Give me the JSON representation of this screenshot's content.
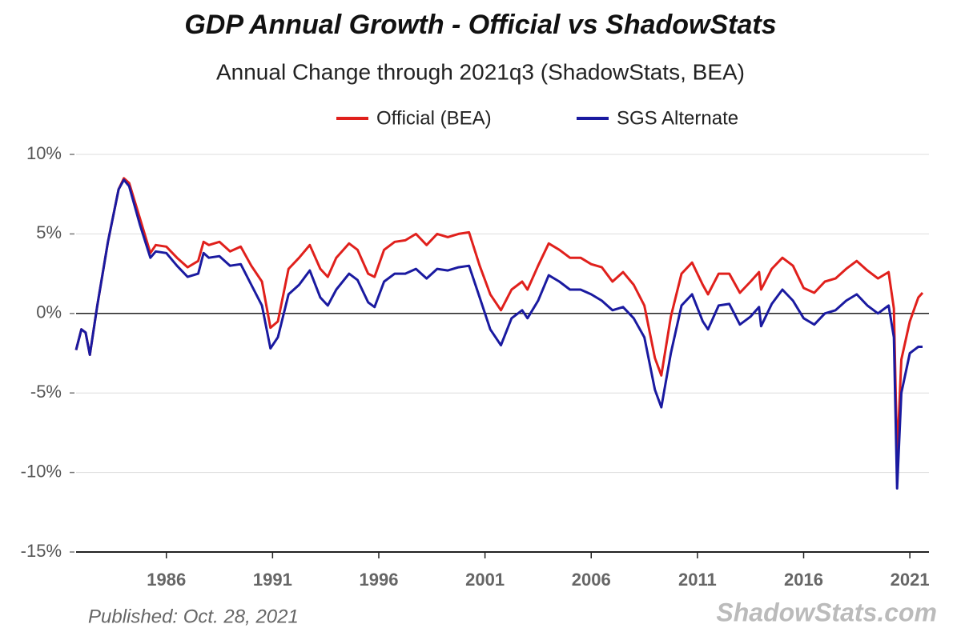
{
  "chart_data": {
    "type": "line",
    "title": "GDP Annual Growth - Official vs ShadowStats",
    "subtitle": "Annual Change through 2021q3  (ShadowStats, BEA)",
    "published": "Published: Oct. 28, 2021",
    "watermark": "ShadowStats.com",
    "x": [
      1981.75,
      1982.0,
      1982.2,
      1982.4,
      1982.75,
      1983.25,
      1983.75,
      1984.0,
      1984.25,
      1984.75,
      1985.25,
      1985.5,
      1986.0,
      1986.5,
      1987.0,
      1987.5,
      1987.75,
      1988.0,
      1988.5,
      1989.0,
      1989.5,
      1990.0,
      1990.5,
      1990.9,
      1991.25,
      1991.75,
      1992.25,
      1992.75,
      1993.25,
      1993.6,
      1994.0,
      1994.6,
      1995.0,
      1995.5,
      1995.8,
      1996.25,
      1996.75,
      1997.25,
      1997.75,
      1998.25,
      1998.75,
      1999.25,
      1999.75,
      2000.25,
      2000.75,
      2001.25,
      2001.75,
      2002.25,
      2002.75,
      2003.0,
      2003.5,
      2004.0,
      2004.5,
      2005.0,
      2005.5,
      2006.0,
      2006.5,
      2007.0,
      2007.5,
      2008.0,
      2008.5,
      2009.0,
      2009.3,
      2009.75,
      2010.25,
      2010.75,
      2011.25,
      2011.5,
      2012.0,
      2012.5,
      2013.0,
      2013.5,
      2013.9,
      2014.0,
      2014.5,
      2015.0,
      2015.5,
      2016.0,
      2016.5,
      2017.0,
      2017.5,
      2018.0,
      2018.5,
      2019.0,
      2019.5,
      2020.0,
      2020.25,
      2020.4,
      2020.6,
      2021.0,
      2021.4,
      2021.6
    ],
    "series": [
      {
        "name": "Official (BEA)",
        "color": "#e0201c",
        "values": [
          -2.3,
          -1.0,
          -1.2,
          -2.6,
          0.5,
          4.5,
          7.8,
          8.5,
          8.2,
          6.0,
          3.8,
          4.3,
          4.2,
          3.5,
          2.9,
          3.3,
          4.5,
          4.3,
          4.5,
          3.9,
          4.2,
          3.0,
          2.0,
          -0.9,
          -0.5,
          2.8,
          3.5,
          4.3,
          2.8,
          2.3,
          3.5,
          4.4,
          4.0,
          2.5,
          2.3,
          4.0,
          4.5,
          4.6,
          5.0,
          4.3,
          5.0,
          4.8,
          5.0,
          5.1,
          3.0,
          1.2,
          0.2,
          1.5,
          2.0,
          1.5,
          3.0,
          4.4,
          4.0,
          3.5,
          3.5,
          3.1,
          2.9,
          2.0,
          2.6,
          1.8,
          0.5,
          -2.8,
          -3.9,
          -0.2,
          2.5,
          3.2,
          1.8,
          1.2,
          2.5,
          2.5,
          1.3,
          2.0,
          2.6,
          1.5,
          2.8,
          3.5,
          3.0,
          1.6,
          1.3,
          2.0,
          2.2,
          2.8,
          3.3,
          2.7,
          2.2,
          2.6,
          0.3,
          -9.1,
          -2.9,
          -0.5,
          1.0,
          1.3
        ]
      },
      {
        "name": "SGS Alternate",
        "color": "#1a1aa0",
        "values": [
          -2.3,
          -1.0,
          -1.2,
          -2.6,
          0.5,
          4.5,
          7.8,
          8.4,
          8.0,
          5.6,
          3.5,
          3.9,
          3.8,
          3.0,
          2.3,
          2.5,
          3.8,
          3.5,
          3.6,
          3.0,
          3.1,
          1.8,
          0.5,
          -2.2,
          -1.5,
          1.2,
          1.8,
          2.7,
          1.0,
          0.5,
          1.5,
          2.5,
          2.1,
          0.7,
          0.4,
          2.0,
          2.5,
          2.5,
          2.8,
          2.2,
          2.8,
          2.7,
          2.9,
          3.0,
          1.0,
          -1.0,
          -2.0,
          -0.3,
          0.2,
          -0.3,
          0.8,
          2.4,
          2.0,
          1.5,
          1.5,
          1.2,
          0.8,
          0.2,
          0.4,
          -0.3,
          -1.5,
          -4.8,
          -5.9,
          -2.5,
          0.5,
          1.2,
          -0.5,
          -1.0,
          0.5,
          0.6,
          -0.7,
          -0.2,
          0.4,
          -0.8,
          0.6,
          1.5,
          0.8,
          -0.3,
          -0.7,
          0.0,
          0.2,
          0.8,
          1.2,
          0.5,
          0.0,
          0.5,
          -1.5,
          -11.0,
          -5.0,
          -2.5,
          -2.1,
          -2.1
        ]
      }
    ],
    "xlim": [
      1981.75,
      2021.9
    ],
    "ylim": [
      -15,
      10
    ],
    "xticks": [
      1986,
      1991,
      1996,
      2001,
      2006,
      2011,
      2016,
      2021
    ],
    "yticks": [
      {
        "value": -15,
        "label": "-15%"
      },
      {
        "value": -10,
        "label": "-10%"
      },
      {
        "value": -5,
        "label": "-5%"
      },
      {
        "value": 0,
        "label": "0%"
      },
      {
        "value": 5,
        "label": "5%"
      },
      {
        "value": 10,
        "label": "10%"
      }
    ],
    "grid": true
  }
}
